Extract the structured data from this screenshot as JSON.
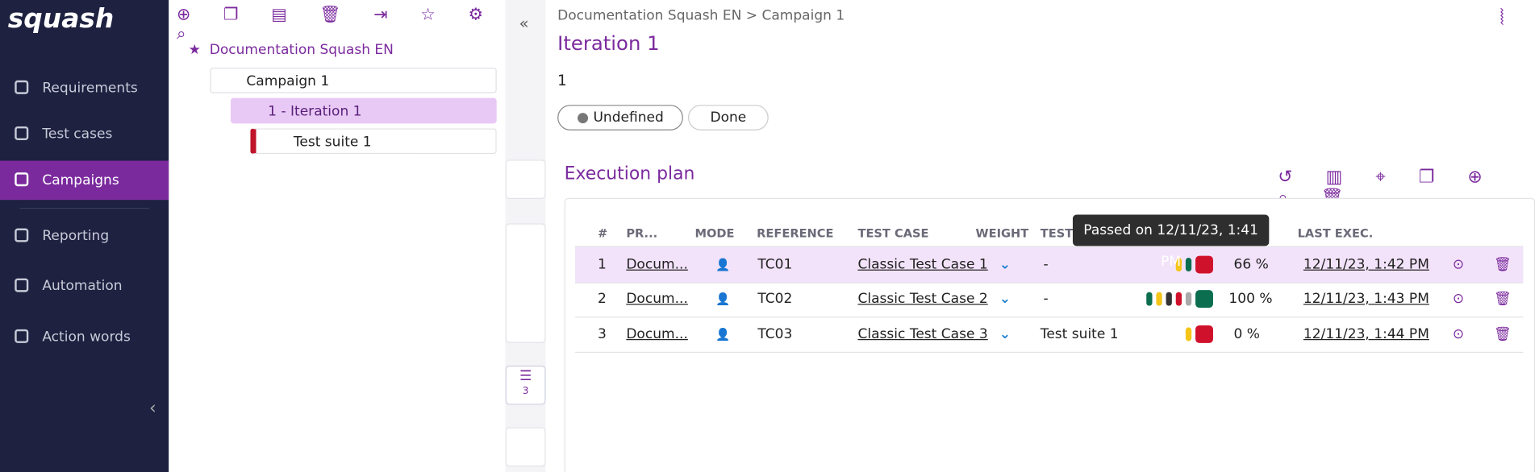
{
  "nav": {
    "items": [
      "Requirements",
      "Test cases",
      "Campaigns",
      "Reporting",
      "Automation",
      "Action words"
    ],
    "active": 2
  },
  "tree": {
    "root": "Documentation Squash EN",
    "campaign": "Campaign 1",
    "iteration": "1 - Iteration 1",
    "suite": "Test suite 1"
  },
  "header": {
    "breadcrumb": "Documentation Squash EN > Campaign 1",
    "title": "Iteration 1",
    "reference": "1",
    "status": "Undefined",
    "progress": "Done"
  },
  "side_tabs": {
    "plan_count": "3"
  },
  "plan": {
    "title": "Execution plan",
    "columns": [
      "#",
      "PR...",
      "MODE",
      "REFERENCE",
      "TEST CASE",
      "WEIGHT",
      "TEST SUITE",
      "LAST EXEC."
    ],
    "rows": [
      {
        "num": "1",
        "project": "Docum...",
        "reference": "TC01",
        "test_case": "Classic Test Case 1",
        "suite": "-",
        "statuses": [
          "#f5c518",
          "#0b6e4f",
          "#d0112b"
        ],
        "success": "66 %",
        "last_exec": "12/11/23, 1:42 PM"
      },
      {
        "num": "2",
        "project": "Docum...",
        "reference": "TC02",
        "test_case": "Classic Test Case 2",
        "suite": "-",
        "statuses": [
          "#0b6e4f",
          "#f5c518",
          "#333333",
          "#d0112b",
          "#aaaaaa",
          "#0b6e4f"
        ],
        "success": "100 %",
        "last_exec": "12/11/23, 1:43 PM"
      },
      {
        "num": "3",
        "project": "Docum...",
        "reference": "TC03",
        "test_case": "Classic Test Case 3",
        "suite": "Test suite 1",
        "statuses": [
          "#f5c518",
          "#d0112b"
        ],
        "success": "0 %",
        "last_exec": "12/11/23, 1:44 PM"
      }
    ],
    "tooltip": "Passed on 12/11/23, 1:41 PM"
  }
}
